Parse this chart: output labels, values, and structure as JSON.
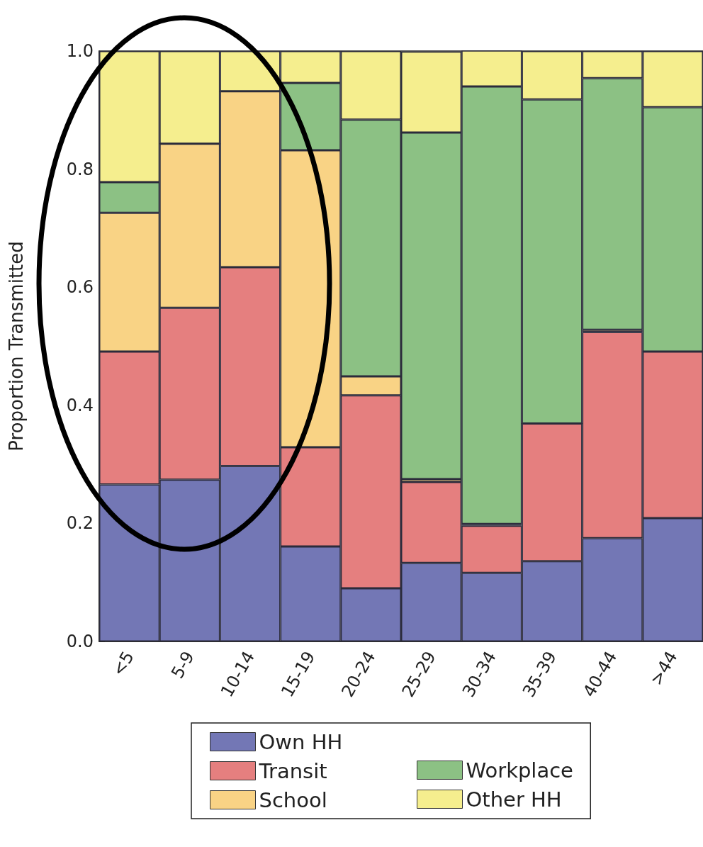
{
  "chart_data": {
    "type": "bar",
    "stacked": true,
    "ylabel": "Proportion Transmitted",
    "categories": [
      "<5",
      "5-9",
      "10-14",
      "15-19",
      "20-24",
      "25-29",
      "30-34",
      "35-39",
      "40-44",
      ">44"
    ],
    "series": [
      {
        "name": "Own HH",
        "color": "#7377b5",
        "values": [
          0.266,
          0.274,
          0.297,
          0.161,
          0.09,
          0.133,
          0.116,
          0.136,
          0.175,
          0.209
        ]
      },
      {
        "name": "Transit",
        "color": "#e57f7f",
        "values": [
          0.225,
          0.291,
          0.337,
          0.168,
          0.327,
          0.137,
          0.08,
          0.233,
          0.349,
          0.282
        ]
      },
      {
        "name": "School",
        "color": "#f9d385",
        "values": [
          0.235,
          0.278,
          0.298,
          0.503,
          0.032,
          0.005,
          0.003,
          0,
          0.004,
          0
        ]
      },
      {
        "name": "Workplace",
        "color": "#8cc184",
        "values": [
          0.052,
          0,
          0,
          0.114,
          0.435,
          0.587,
          0.741,
          0.549,
          0.426,
          0.414
        ]
      },
      {
        "name": "Other HH",
        "color": "#f5ee8e",
        "values": [
          0.222,
          0.157,
          0.068,
          0.054,
          0.116,
          0.137,
          0.061,
          0.082,
          0.046,
          0.095
        ]
      }
    ],
    "ylim": [
      0,
      1
    ],
    "yticks": [
      {
        "value": 0,
        "label": "0.0"
      },
      {
        "value": 0.2,
        "label": "0.2"
      },
      {
        "value": 0.4,
        "label": "0.4"
      },
      {
        "value": 0.6,
        "label": "0.6"
      },
      {
        "value": 0.8,
        "label": "0.8"
      },
      {
        "value": 1,
        "label": "1.0"
      }
    ],
    "grid": false,
    "legend": "bottom"
  }
}
